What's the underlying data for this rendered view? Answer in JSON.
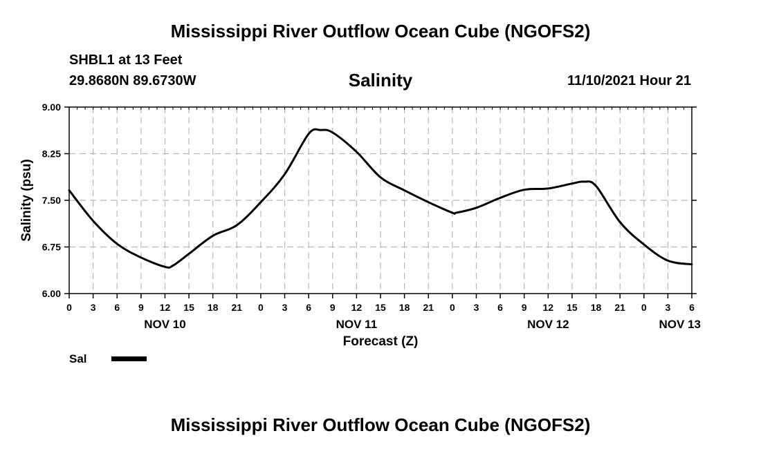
{
  "header": {
    "title": "Mississippi River Outflow Ocean Cube (NGOFS2)",
    "station": "SHBL1 at 13 Feet",
    "coordinates": "29.8680N  89.6730W",
    "date_hour": "11/10/2021 Hour 21"
  },
  "footer": {
    "title": "Mississippi River Outflow Ocean Cube (NGOFS2)"
  },
  "chart_data": {
    "type": "line",
    "title": "Salinity",
    "xlabel": "Forecast (Z)",
    "ylabel": "Salinity (psu)",
    "ylim": [
      6.0,
      9.0
    ],
    "yticks": [
      "6.00",
      "6.75",
      "7.50",
      "8.25",
      "9.00"
    ],
    "xlim": [
      0,
      78
    ],
    "xtick_labels": [
      "0",
      "3",
      "6",
      "9",
      "12",
      "15",
      "18",
      "21",
      "0",
      "3",
      "6",
      "9",
      "12",
      "15",
      "18",
      "21",
      "0",
      "3",
      "6",
      "9",
      "12",
      "15",
      "18",
      "21",
      "0",
      "3",
      "6"
    ],
    "day_labels": [
      {
        "label": "NOV 10",
        "hour": 12
      },
      {
        "label": "NOV 11",
        "hour": 36
      },
      {
        "label": "NOV 12",
        "hour": 60
      },
      {
        "label": "NOV 13",
        "hour": 76.5
      }
    ],
    "grid": true,
    "legend": {
      "position": "bottom-left",
      "label": "Sal"
    },
    "series": [
      {
        "name": "Sal",
        "x": [
          0,
          3,
          6,
          9,
          12,
          13,
          15,
          18,
          21,
          24,
          27,
          30,
          31.5,
          33,
          36,
          39,
          42,
          45,
          48,
          48.5,
          51,
          54,
          57,
          60,
          63,
          64.5,
          66,
          69,
          72,
          75,
          78
        ],
        "y": [
          7.66,
          7.17,
          6.8,
          6.58,
          6.43,
          6.45,
          6.64,
          6.93,
          7.1,
          7.47,
          7.92,
          8.57,
          8.63,
          8.59,
          8.28,
          7.87,
          7.66,
          7.47,
          7.3,
          7.3,
          7.38,
          7.54,
          7.67,
          7.69,
          7.77,
          7.8,
          7.73,
          7.15,
          6.79,
          6.53,
          6.47
        ]
      }
    ]
  }
}
